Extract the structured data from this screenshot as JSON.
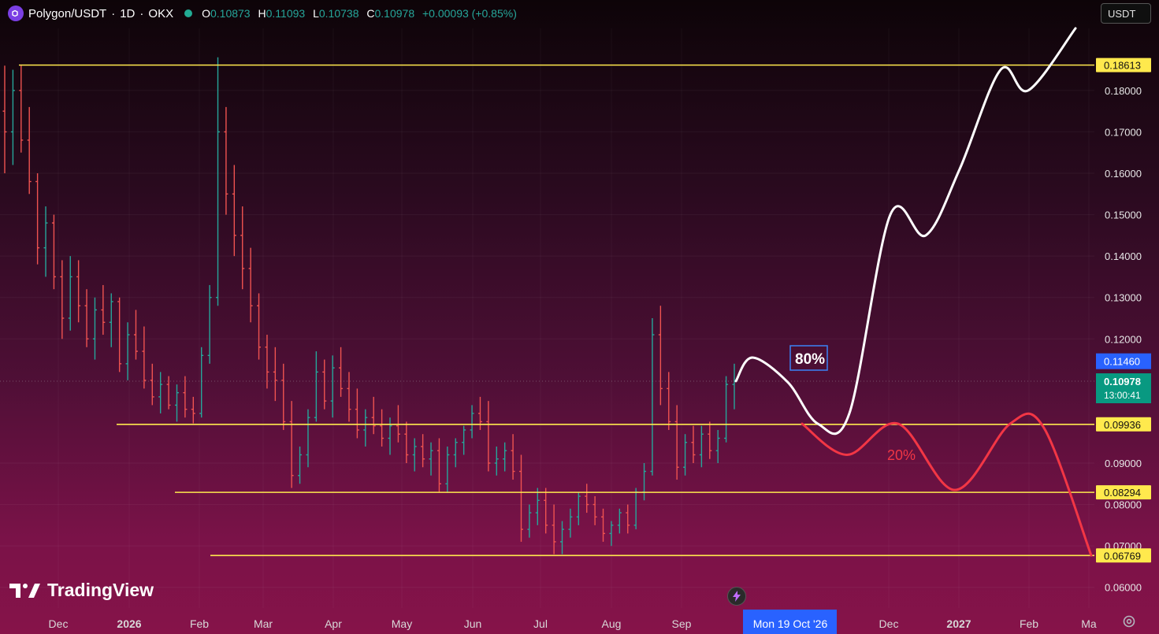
{
  "header": {
    "symbol": "Polygon/USDT",
    "interval": "1D",
    "exchange": "OKX",
    "ohlc": {
      "o_label": "O",
      "o": "0.10873",
      "h_label": "H",
      "h": "0.11093",
      "l_label": "L",
      "l": "0.10738",
      "c_label": "C",
      "c": "0.10978",
      "change": "+0.00093 (+0.85%)"
    }
  },
  "currency_button": "USDT",
  "brand": "TradingView",
  "colors": {
    "up": "#26a69a",
    "down": "#ef5350",
    "level_line": "#ffe94d",
    "bull_path": "#ffffff",
    "bear_path": "#f23645",
    "last_price_bg": "#089981",
    "crosshair_price_bg": "#2962ff"
  },
  "chart_data": {
    "type": "bar",
    "y_scale": "linear",
    "ylim": [
      0.055,
      0.195
    ],
    "y_ticks": [
      "0.18000",
      "0.17000",
      "0.16000",
      "0.15000",
      "0.14000",
      "0.13000",
      "0.12000",
      "0.09000",
      "0.08000",
      "0.07000",
      "0.06000"
    ],
    "x_ticks": [
      "Dec",
      "2026",
      "Feb",
      "Mar",
      "Apr",
      "May",
      "Jun",
      "Jul",
      "Aug",
      "Sep",
      "Dec",
      "2027",
      "Feb",
      "Ma"
    ],
    "crosshair_date": "Mon 19 Oct '26",
    "crosshair_price": "0.11460",
    "last_price": {
      "value": "0.10978",
      "countdown": "13:00:41"
    },
    "levels": [
      {
        "price": 0.18613,
        "label": "0.18613"
      },
      {
        "price": 0.09936,
        "label": "0.09936"
      },
      {
        "price": 0.08294,
        "label": "0.08294"
      },
      {
        "price": 0.06769,
        "label": "0.06769"
      }
    ],
    "scenarios": [
      {
        "label": "80%",
        "path": [
          0.1098,
          0.1155,
          0.1095,
          0.0995,
          0.102,
          0.15,
          0.145,
          0.161,
          0.185,
          0.18,
          0.195
        ]
      },
      {
        "label": "20%",
        "path": [
          0.0995,
          0.092,
          0.0995,
          0.0835,
          0.0995,
          0.0985,
          0.0677
        ]
      }
    ],
    "ohlc_series": [
      [
        0.175,
        0.186,
        0.16,
        0.17
      ],
      [
        0.17,
        0.185,
        0.162,
        0.18
      ],
      [
        0.18,
        0.186,
        0.165,
        0.168
      ],
      [
        0.168,
        0.176,
        0.155,
        0.158
      ],
      [
        0.158,
        0.16,
        0.138,
        0.142
      ],
      [
        0.142,
        0.152,
        0.135,
        0.148
      ],
      [
        0.148,
        0.15,
        0.132,
        0.135
      ],
      [
        0.135,
        0.139,
        0.12,
        0.125
      ],
      [
        0.125,
        0.14,
        0.122,
        0.135
      ],
      [
        0.135,
        0.139,
        0.124,
        0.128
      ],
      [
        0.128,
        0.132,
        0.118,
        0.12
      ],
      [
        0.12,
        0.13,
        0.115,
        0.127
      ],
      [
        0.127,
        0.133,
        0.121,
        0.124
      ],
      [
        0.124,
        0.131,
        0.118,
        0.129
      ],
      [
        0.129,
        0.13,
        0.112,
        0.114
      ],
      [
        0.114,
        0.124,
        0.11,
        0.121
      ],
      [
        0.121,
        0.127,
        0.115,
        0.117
      ],
      [
        0.117,
        0.123,
        0.108,
        0.11
      ],
      [
        0.11,
        0.114,
        0.104,
        0.106
      ],
      [
        0.106,
        0.112,
        0.102,
        0.109
      ],
      [
        0.109,
        0.111,
        0.103,
        0.104
      ],
      [
        0.104,
        0.109,
        0.1,
        0.107
      ],
      [
        0.107,
        0.111,
        0.101,
        0.103
      ],
      [
        0.103,
        0.106,
        0.0996,
        0.102
      ],
      [
        0.102,
        0.118,
        0.101,
        0.116
      ],
      [
        0.116,
        0.133,
        0.114,
        0.13
      ],
      [
        0.13,
        0.188,
        0.128,
        0.17
      ],
      [
        0.17,
        0.176,
        0.15,
        0.155
      ],
      [
        0.155,
        0.162,
        0.14,
        0.145
      ],
      [
        0.145,
        0.152,
        0.132,
        0.137
      ],
      [
        0.137,
        0.142,
        0.124,
        0.128
      ],
      [
        0.128,
        0.131,
        0.115,
        0.118
      ],
      [
        0.118,
        0.121,
        0.108,
        0.112
      ],
      [
        0.112,
        0.118,
        0.105,
        0.11
      ],
      [
        0.11,
        0.114,
        0.098,
        0.1
      ],
      [
        0.1,
        0.105,
        0.084,
        0.087
      ],
      [
        0.087,
        0.094,
        0.085,
        0.092
      ],
      [
        0.092,
        0.103,
        0.089,
        0.101
      ],
      [
        0.101,
        0.117,
        0.1,
        0.112
      ],
      [
        0.112,
        0.115,
        0.103,
        0.105
      ],
      [
        0.105,
        0.116,
        0.101,
        0.113
      ],
      [
        0.113,
        0.118,
        0.106,
        0.108
      ],
      [
        0.108,
        0.112,
        0.1,
        0.103
      ],
      [
        0.103,
        0.108,
        0.096,
        0.098
      ],
      [
        0.098,
        0.103,
        0.094,
        0.101
      ],
      [
        0.101,
        0.106,
        0.097,
        0.099
      ],
      [
        0.099,
        0.103,
        0.094,
        0.096
      ],
      [
        0.096,
        0.101,
        0.092,
        0.099
      ],
      [
        0.099,
        0.104,
        0.095,
        0.097
      ],
      [
        0.097,
        0.1,
        0.09,
        0.092
      ],
      [
        0.092,
        0.096,
        0.088,
        0.094
      ],
      [
        0.094,
        0.097,
        0.089,
        0.091
      ],
      [
        0.091,
        0.095,
        0.087,
        0.093
      ],
      [
        0.093,
        0.096,
        0.083,
        0.085
      ],
      [
        0.085,
        0.094,
        0.083,
        0.092
      ],
      [
        0.092,
        0.096,
        0.089,
        0.095
      ],
      [
        0.095,
        0.099,
        0.092,
        0.098
      ],
      [
        0.098,
        0.104,
        0.096,
        0.102
      ],
      [
        0.102,
        0.106,
        0.098,
        0.1
      ],
      [
        0.1,
        0.105,
        0.088,
        0.09
      ],
      [
        0.09,
        0.094,
        0.087,
        0.091
      ],
      [
        0.091,
        0.095,
        0.088,
        0.093
      ],
      [
        0.093,
        0.097,
        0.086,
        0.088
      ],
      [
        0.088,
        0.092,
        0.071,
        0.074
      ],
      [
        0.074,
        0.08,
        0.072,
        0.078
      ],
      [
        0.078,
        0.084,
        0.075,
        0.081
      ],
      [
        0.081,
        0.084,
        0.073,
        0.075
      ],
      [
        0.075,
        0.08,
        0.068,
        0.071
      ],
      [
        0.071,
        0.076,
        0.068,
        0.074
      ],
      [
        0.074,
        0.079,
        0.072,
        0.077
      ],
      [
        0.077,
        0.083,
        0.075,
        0.082
      ],
      [
        0.082,
        0.085,
        0.078,
        0.08
      ],
      [
        0.08,
        0.082,
        0.075,
        0.077
      ],
      [
        0.077,
        0.079,
        0.071,
        0.073
      ],
      [
        0.073,
        0.076,
        0.07,
        0.075
      ],
      [
        0.075,
        0.079,
        0.073,
        0.078
      ],
      [
        0.078,
        0.08,
        0.073,
        0.075
      ],
      [
        0.075,
        0.084,
        0.074,
        0.083
      ],
      [
        0.083,
        0.09,
        0.081,
        0.088
      ],
      [
        0.088,
        0.125,
        0.087,
        0.121
      ],
      [
        0.121,
        0.128,
        0.104,
        0.108
      ],
      [
        0.108,
        0.112,
        0.098,
        0.1
      ],
      [
        0.1,
        0.104,
        0.086,
        0.089
      ],
      [
        0.089,
        0.097,
        0.087,
        0.095
      ],
      [
        0.095,
        0.099,
        0.09,
        0.092
      ],
      [
        0.092,
        0.099,
        0.089,
        0.097
      ],
      [
        0.097,
        0.1,
        0.091,
        0.093
      ],
      [
        0.093,
        0.098,
        0.09,
        0.096
      ],
      [
        0.096,
        0.111,
        0.095,
        0.109
      ],
      [
        0.109,
        0.114,
        0.103,
        0.1098
      ]
    ]
  }
}
